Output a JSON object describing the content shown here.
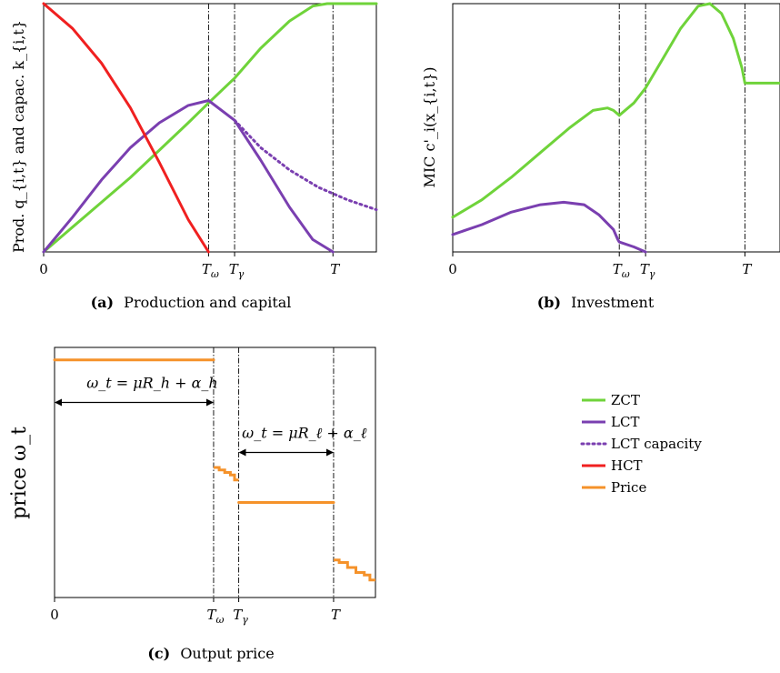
{
  "colors": {
    "ZCT": "#6fd33a",
    "LCT": "#7a3fb0",
    "HCT": "#f02020",
    "Price": "#f5922a"
  },
  "legend": {
    "placement": "right-middle",
    "items": [
      {
        "key": "ZCT",
        "label": "ZCT",
        "style": "solid"
      },
      {
        "key": "LCT",
        "label": "LCT",
        "style": "solid"
      },
      {
        "key": "LCT",
        "label": "LCT capacity",
        "style": "dotted"
      },
      {
        "key": "HCT",
        "label": "HCT",
        "style": "solid"
      },
      {
        "key": "Price",
        "label": "Price",
        "style": "solid"
      }
    ]
  },
  "chart_data": [
    {
      "id": "a",
      "type": "line",
      "caption_tag": "(a)",
      "caption": "Production and capital",
      "ylabel": "Prod. q_{i,t} and capac. k_{i,t}",
      "xlim": [
        0,
        1.15
      ],
      "ylim": [
        0,
        1
      ],
      "grid": false,
      "xticks": [
        {
          "x": 0,
          "label": "0"
        },
        {
          "x": 0.57,
          "label": "T_ω"
        },
        {
          "x": 0.66,
          "label": "T_γ"
        },
        {
          "x": 1.0,
          "label": "T"
        }
      ],
      "vlines": [
        0.57,
        0.66,
        1.0
      ],
      "series": [
        {
          "key": "ZCT",
          "style": "solid",
          "x": [
            0,
            0.1,
            0.2,
            0.3,
            0.4,
            0.5,
            0.57,
            0.66,
            0.75,
            0.85,
            0.93,
            0.98,
            1.0,
            1.15
          ],
          "y": [
            0,
            0.1,
            0.2,
            0.3,
            0.41,
            0.52,
            0.6,
            0.7,
            0.82,
            0.93,
            0.99,
            1.0,
            1.0,
            1.0
          ]
        },
        {
          "key": "LCT",
          "style": "solid",
          "x": [
            0,
            0.1,
            0.2,
            0.3,
            0.4,
            0.5,
            0.57,
            0.66,
            0.75,
            0.85,
            0.93,
            1.0
          ],
          "y": [
            0,
            0.14,
            0.29,
            0.42,
            0.52,
            0.59,
            0.61,
            0.53,
            0.37,
            0.18,
            0.05,
            0.0
          ]
        },
        {
          "key": "LCT",
          "name": "LCT capacity",
          "style": "dotted",
          "x": [
            0.66,
            0.75,
            0.85,
            0.95,
            1.05,
            1.15
          ],
          "y": [
            0.53,
            0.42,
            0.33,
            0.26,
            0.21,
            0.17
          ]
        },
        {
          "key": "HCT",
          "style": "solid",
          "x": [
            0,
            0.1,
            0.2,
            0.3,
            0.4,
            0.5,
            0.57
          ],
          "y": [
            1.0,
            0.9,
            0.76,
            0.58,
            0.36,
            0.13,
            0.0
          ]
        }
      ]
    },
    {
      "id": "b",
      "type": "line",
      "caption_tag": "(b)",
      "caption": "Investment",
      "ylabel": "MIC c'_i(x_{i,t})",
      "xlim": [
        0,
        1.12
      ],
      "ylim": [
        0,
        1
      ],
      "grid": false,
      "xticks": [
        {
          "x": 0,
          "label": "0"
        },
        {
          "x": 0.57,
          "label": "T_ω"
        },
        {
          "x": 0.66,
          "label": "T_γ"
        },
        {
          "x": 1.0,
          "label": "T"
        }
      ],
      "vlines": [
        0.57,
        0.66,
        1.0
      ],
      "series": [
        {
          "key": "ZCT",
          "style": "solid",
          "x": [
            0,
            0.1,
            0.2,
            0.3,
            0.4,
            0.48,
            0.53,
            0.55,
            0.57,
            0.62,
            0.66,
            0.72,
            0.78,
            0.84,
            0.88,
            0.92,
            0.96,
            0.99,
            1.0,
            1.12
          ],
          "y": [
            0.14,
            0.21,
            0.3,
            0.4,
            0.5,
            0.57,
            0.58,
            0.57,
            0.55,
            0.6,
            0.66,
            0.78,
            0.9,
            0.99,
            1.0,
            0.96,
            0.86,
            0.74,
            0.68,
            0.68
          ]
        },
        {
          "key": "LCT",
          "style": "solid",
          "x": [
            0,
            0.1,
            0.2,
            0.3,
            0.38,
            0.45,
            0.5,
            0.55,
            0.565,
            0.57,
            0.62,
            0.66
          ],
          "y": [
            0.07,
            0.11,
            0.16,
            0.19,
            0.2,
            0.19,
            0.15,
            0.09,
            0.05,
            0.04,
            0.02,
            0.0
          ]
        }
      ]
    },
    {
      "id": "c",
      "type": "line",
      "caption_tag": "(c)",
      "caption": "Output price",
      "ylabel": "price ω_t",
      "xlim": [
        0,
        1.15
      ],
      "ylim": [
        0,
        1
      ],
      "grid": false,
      "xticks": [
        {
          "x": 0,
          "label": "0"
        },
        {
          "x": 0.57,
          "label": "T_ω"
        },
        {
          "x": 0.66,
          "label": "T_γ"
        },
        {
          "x": 1.0,
          "label": "T"
        }
      ],
      "vlines": [
        0.57,
        0.66,
        1.0
      ],
      "series": [
        {
          "key": "Price",
          "style": "solid",
          "x": [
            0,
            0.57
          ],
          "y": [
            0.95,
            0.95
          ]
        },
        {
          "key": "Price",
          "style": "step",
          "x": [
            0.57,
            0.59,
            0.59,
            0.61,
            0.61,
            0.63,
            0.63,
            0.645,
            0.645,
            0.66
          ],
          "y": [
            0.52,
            0.52,
            0.51,
            0.51,
            0.5,
            0.5,
            0.49,
            0.49,
            0.47,
            0.47
          ]
        },
        {
          "key": "Price",
          "style": "solid",
          "x": [
            0.66,
            1.0
          ],
          "y": [
            0.38,
            0.38
          ]
        },
        {
          "key": "Price",
          "style": "step",
          "x": [
            1.0,
            1.02,
            1.02,
            1.05,
            1.05,
            1.08,
            1.08,
            1.11,
            1.11,
            1.13,
            1.13,
            1.15
          ],
          "y": [
            0.15,
            0.15,
            0.14,
            0.14,
            0.12,
            0.12,
            0.1,
            0.1,
            0.09,
            0.09,
            0.07,
            0.07
          ]
        }
      ],
      "annotations": [
        {
          "text": "ω_t = μR_h + α_h",
          "from": 0,
          "to": 0.57,
          "y": 0.78
        },
        {
          "text": "ω_t = μR_ℓ + α_ℓ",
          "from": 0.66,
          "to": 1.0,
          "y": 0.58
        }
      ]
    }
  ]
}
